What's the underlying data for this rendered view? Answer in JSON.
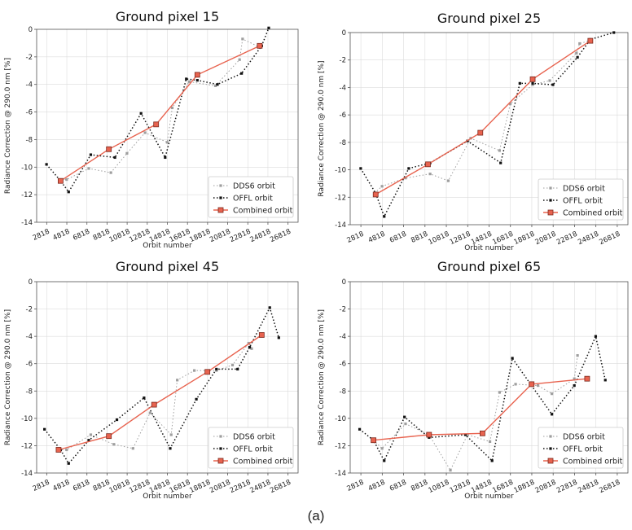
{
  "figure": {
    "caption": "(a)"
  },
  "colors": {
    "dds6": "#9e9e9e",
    "offl": "#111111",
    "combined": "#e8634f",
    "combined_fill": "#e8634f",
    "grid": "#dcdcdc"
  },
  "chart_data": [
    {
      "type": "line",
      "title": "Ground pixel 15",
      "xlabel": "Orbit number",
      "ylabel": "Radiance Correction @ 290.0 nm [%]",
      "xticks": [
        2818,
        4818,
        6818,
        8818,
        10818,
        12818,
        14818,
        16818,
        18818,
        20818,
        22818,
        24818,
        26818
      ],
      "xlim": [
        1818,
        27818
      ],
      "ylim": [
        -14,
        0
      ],
      "yticks": [
        0,
        -2,
        -4,
        -6,
        -8,
        -10,
        -12,
        -14
      ],
      "grid": true,
      "legend": "bottom-right",
      "series": [
        {
          "name": "DDS6 orbit",
          "style": "dds6",
          "x": [
            4300,
            4800,
            7000,
            9200,
            10800,
            12600,
            14800,
            15300,
            17000,
            19600,
            22000,
            22300,
            24000
          ],
          "y": [
            -10.9,
            -10.9,
            -10.1,
            -10.4,
            -9.0,
            -7.5,
            -8.2,
            -5.7,
            -3.8,
            -4.1,
            -2.2,
            -0.7,
            -1.3
          ]
        },
        {
          "name": "OFFL orbit",
          "style": "offl",
          "x": [
            2800,
            4200,
            5000,
            7200,
            9600,
            12200,
            14600,
            16700,
            17800,
            19800,
            22200,
            24200,
            24900
          ],
          "y": [
            -9.8,
            -11.0,
            -11.8,
            -9.1,
            -9.3,
            -6.1,
            -9.3,
            -3.6,
            -3.7,
            -4.0,
            -3.2,
            -1.2,
            0.1
          ]
        },
        {
          "name": "Combined orbit",
          "style": "combined",
          "x": [
            4200,
            9000,
            13700,
            17800,
            24000
          ],
          "y": [
            -11.0,
            -8.7,
            -6.9,
            -3.3,
            -1.2
          ]
        }
      ]
    },
    {
      "type": "line",
      "title": "Ground pixel 25",
      "xlabel": "Orbit number",
      "ylabel": "Radiance Correction @ 290.0 nm [%]",
      "xticks": [
        2818,
        4818,
        6818,
        8818,
        10818,
        12818,
        14818,
        16818,
        18818,
        20818,
        22818,
        24818,
        26818
      ],
      "xlim": [
        1818,
        27818
      ],
      "ylim": [
        -14,
        0
      ],
      "yticks": [
        0,
        -2,
        -4,
        -6,
        -8,
        -10,
        -12,
        -14
      ],
      "grid": true,
      "legend": "bottom-right",
      "series": [
        {
          "name": "DDS6 orbit",
          "style": "dds6",
          "x": [
            4100,
            4800,
            7000,
            9300,
            11000,
            13100,
            15800,
            16800,
            18900,
            20500,
            23000,
            23300,
            24200
          ],
          "y": [
            -11.7,
            -11.2,
            -10.6,
            -10.3,
            -10.8,
            -7.7,
            -8.6,
            -5.2,
            -3.8,
            -3.5,
            -1.5,
            -0.8,
            -0.6
          ]
        },
        {
          "name": "OFFL orbit",
          "style": "offl",
          "x": [
            2800,
            4200,
            5000,
            7300,
            9300,
            12800,
            15900,
            17700,
            18900,
            20800,
            23100,
            24300,
            26500
          ],
          "y": [
            -9.9,
            -11.7,
            -13.4,
            -9.9,
            -9.5,
            -7.9,
            -9.5,
            -3.7,
            -3.7,
            -3.8,
            -1.8,
            -0.5,
            0.0
          ]
        },
        {
          "name": "Combined orbit",
          "style": "combined",
          "x": [
            4200,
            9100,
            14000,
            18900,
            24300
          ],
          "y": [
            -11.8,
            -9.6,
            -7.3,
            -3.4,
            -0.6
          ]
        }
      ]
    },
    {
      "type": "line",
      "title": "Ground pixel 45",
      "xlabel": "Orbit number",
      "ylabel": "Radiance Correction @ 290.0 nm [%]",
      "xticks": [
        2818,
        4818,
        6818,
        8818,
        10818,
        12818,
        14818,
        16818,
        18818,
        20818,
        22818,
        24818,
        26818
      ],
      "xlim": [
        1818,
        27818
      ],
      "ylim": [
        -14,
        0
      ],
      "yticks": [
        0,
        -2,
        -4,
        -6,
        -8,
        -10,
        -12,
        -14
      ],
      "grid": true,
      "legend": "bottom-right",
      "series": [
        {
          "name": "DDS6 orbit",
          "style": "dds6",
          "x": [
            4000,
            4800,
            7200,
            9500,
            11400,
            13100,
            15200,
            15800,
            17500,
            19700,
            21300,
            22900,
            23200
          ],
          "y": [
            -12.3,
            -12.3,
            -11.2,
            -11.9,
            -12.2,
            -9.6,
            -11.2,
            -7.2,
            -6.5,
            -6.5,
            -6.1,
            -4.5,
            -4.9
          ]
        },
        {
          "name": "OFFL orbit",
          "style": "offl",
          "x": [
            2600,
            4200,
            5000,
            7000,
            9800,
            12500,
            15100,
            17700,
            19700,
            21800,
            23000,
            25000,
            25900
          ],
          "y": [
            -10.8,
            -12.3,
            -13.3,
            -11.6,
            -10.1,
            -8.5,
            -12.2,
            -8.6,
            -6.4,
            -6.4,
            -4.8,
            -1.9,
            -4.1
          ]
        },
        {
          "name": "Combined orbit",
          "style": "combined",
          "x": [
            4000,
            9000,
            13500,
            18800,
            24200
          ],
          "y": [
            -12.3,
            -11.3,
            -9.0,
            -6.6,
            -3.9
          ]
        }
      ]
    },
    {
      "type": "line",
      "title": "Ground pixel 65",
      "xlabel": "Orbit number",
      "ylabel": "Radiance Correction @ 290.0 nm [%]",
      "xticks": [
        2818,
        4818,
        6818,
        8818,
        10818,
        12818,
        14818,
        16818,
        18818,
        20818,
        22818,
        24818,
        26818
      ],
      "xlim": [
        1818,
        27818
      ],
      "ylim": [
        -14,
        0
      ],
      "yticks": [
        0,
        -2,
        -4,
        -6,
        -8,
        -10,
        -12,
        -14
      ],
      "grid": true,
      "legend": "bottom-right",
      "series": [
        {
          "name": "DDS6 orbit",
          "style": "dds6",
          "x": [
            4000,
            4800,
            7000,
            9200,
            11200,
            12800,
            14900,
            15800,
            17300,
            19400,
            20700,
            22800,
            23100
          ],
          "y": [
            -11.6,
            -12.2,
            -10.4,
            -11.2,
            -13.8,
            -11.2,
            -11.7,
            -8.1,
            -7.5,
            -7.6,
            -8.2,
            -7.1,
            -5.4
          ]
        },
        {
          "name": "OFFL orbit",
          "style": "offl",
          "x": [
            2700,
            4000,
            5000,
            6900,
            9200,
            12600,
            15100,
            17000,
            18700,
            20700,
            22800,
            24800,
            25700
          ],
          "y": [
            -10.8,
            -11.6,
            -13.1,
            -9.9,
            -11.4,
            -11.2,
            -13.1,
            -5.6,
            -7.5,
            -9.7,
            -7.6,
            -4.0,
            -7.2
          ]
        },
        {
          "name": "Combined orbit",
          "style": "combined",
          "x": [
            4000,
            9200,
            14200,
            18800,
            24000
          ],
          "y": [
            -11.6,
            -11.2,
            -11.1,
            -7.5,
            -7.1
          ]
        }
      ]
    }
  ]
}
